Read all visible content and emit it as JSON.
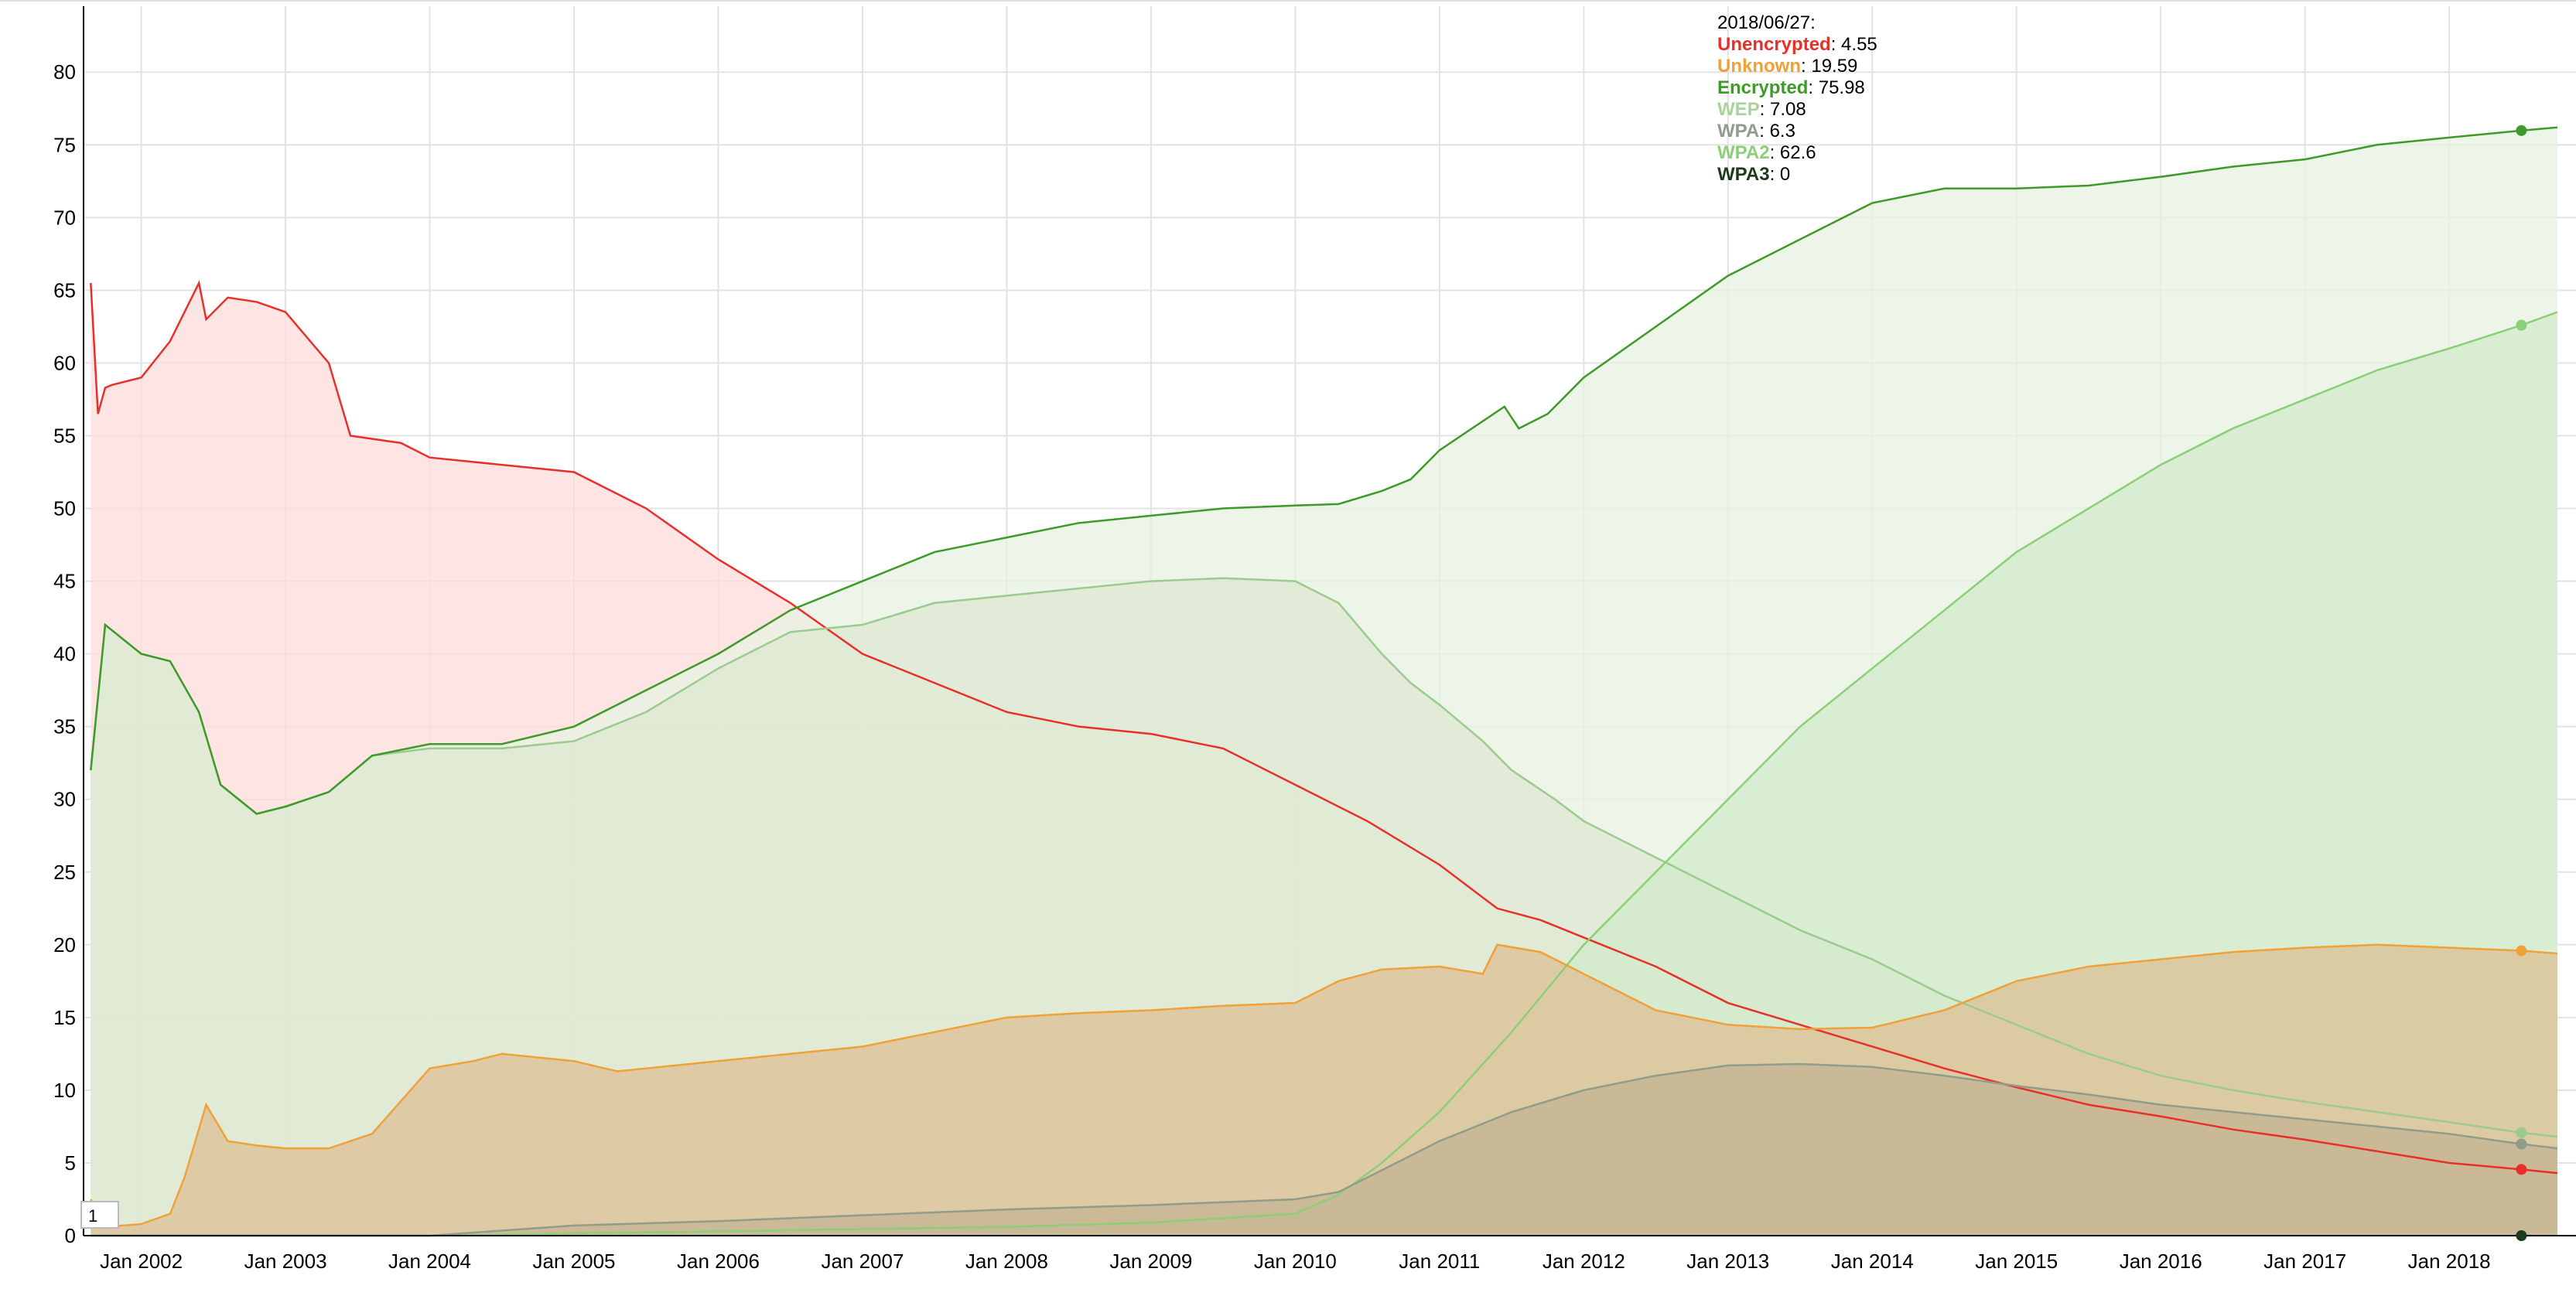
{
  "chart_data": {
    "type": "area",
    "x_ticks": [
      "Jan 2002",
      "Jan 2003",
      "Jan 2004",
      "Jan 2005",
      "Jan 2006",
      "Jan 2007",
      "Jan 2008",
      "Jan 2009",
      "Jan 2010",
      "Jan 2011",
      "Jan 2012",
      "Jan 2013",
      "Jan 2014",
      "Jan 2015",
      "Jan 2016",
      "Jan 2017",
      "Jan 2018"
    ],
    "y_ticks": [
      0,
      5,
      10,
      15,
      20,
      25,
      30,
      35,
      40,
      45,
      50,
      55,
      60,
      65,
      70,
      75,
      80
    ],
    "xlim": [
      2001.6,
      2018.75
    ],
    "ylim": [
      0,
      84
    ],
    "grid": true,
    "legend": {
      "position": "top-center",
      "date_label": "2018/06/27:",
      "entries": [
        {
          "name": "Unencrypted",
          "value": "4.55"
        },
        {
          "name": "Unknown",
          "value": "19.59"
        },
        {
          "name": "Encrypted",
          "value": "75.98"
        },
        {
          "name": "WEP",
          "value": "7.08"
        },
        {
          "name": "WPA",
          "value": "6.3"
        },
        {
          "name": "WPA2",
          "value": "62.6"
        },
        {
          "name": "WPA3",
          "value": "0"
        }
      ]
    },
    "range_selector_value": "1",
    "series": [
      {
        "name": "Unencrypted",
        "color": "#e8302a",
        "fill": "#fddcda",
        "x": [
          2001.65,
          2001.7,
          2001.75,
          2001.8,
          2002.0,
          2002.2,
          2002.4,
          2002.45,
          2002.6,
          2002.8,
          2003.0,
          2003.3,
          2003.45,
          2003.8,
          2004.0,
          2004.5,
          2005.0,
          2005.5,
          2006.0,
          2006.5,
          2007.0,
          2007.5,
          2008.0,
          2008.5,
          2009.0,
          2009.5,
          2010.0,
          2010.5,
          2011.0,
          2011.4,
          2011.7,
          2012.0,
          2012.5,
          2013.0,
          2013.5,
          2014.0,
          2014.5,
          2015.0,
          2015.5,
          2016.0,
          2016.5,
          2017.0,
          2017.5,
          2018.0,
          2018.5,
          2018.75
        ],
        "y": [
          65.5,
          56.5,
          58.3,
          58.5,
          59,
          61.5,
          65.5,
          63,
          64.5,
          64.2,
          63.5,
          60,
          55,
          54.5,
          53.5,
          53,
          52.5,
          50,
          46.5,
          43.5,
          40,
          38,
          36,
          35,
          34.5,
          33.5,
          31,
          28.5,
          25.5,
          22.5,
          21.7,
          20.5,
          18.5,
          16,
          14.5,
          13,
          11.5,
          10.2,
          9,
          8.2,
          7.3,
          6.6,
          5.8,
          5,
          4.55,
          4.3
        ]
      },
      {
        "name": "WEP",
        "color": "#9acb8f",
        "fill": "#c2c9a5",
        "x": [
          2001.65,
          2001.75,
          2002.0,
          2002.2,
          2002.4,
          2002.55,
          2002.8,
          2003.0,
          2003.3,
          2003.6,
          2004.0,
          2004.5,
          2005.0,
          2005.5,
          2006.0,
          2006.5,
          2007.0,
          2007.5,
          2008.0,
          2008.5,
          2009.0,
          2009.5,
          2010.0,
          2010.3,
          2010.6,
          2010.8,
          2011.0,
          2011.3,
          2011.5,
          2011.8,
          2012.0,
          2012.5,
          2013.0,
          2013.5,
          2014.0,
          2014.5,
          2015.0,
          2015.5,
          2016.0,
          2016.5,
          2017.0,
          2017.5,
          2018.0,
          2018.5,
          2018.75
        ],
        "y": [
          32,
          42,
          40,
          39.5,
          36,
          31,
          29,
          29.5,
          30.5,
          33,
          33.5,
          33.5,
          34,
          36,
          39,
          41.5,
          42,
          43.5,
          44,
          44.5,
          45,
          45.2,
          45,
          43.5,
          40,
          38,
          36.5,
          34,
          32,
          30,
          28.5,
          26,
          23.5,
          21,
          19,
          16.5,
          14.5,
          12.5,
          11,
          10,
          9.2,
          8.5,
          7.8,
          7.08,
          6.8
        ]
      },
      {
        "name": "Encrypted",
        "color": "#3e9a29",
        "fill": "#e5f1e0",
        "x": [
          2001.65,
          2001.75,
          2002.0,
          2002.2,
          2002.4,
          2002.55,
          2002.8,
          2003.0,
          2003.3,
          2003.6,
          2004.0,
          2004.5,
          2005.0,
          2005.5,
          2006.0,
          2006.5,
          2007.0,
          2007.5,
          2008.0,
          2008.5,
          2009.0,
          2009.5,
          2010.0,
          2010.3,
          2010.6,
          2010.8,
          2011.0,
          2011.3,
          2011.45,
          2011.55,
          2011.75,
          2012.0,
          2012.5,
          2013.0,
          2013.5,
          2014.0,
          2014.5,
          2015.0,
          2015.5,
          2016.0,
          2016.5,
          2017.0,
          2017.5,
          2018.0,
          2018.5,
          2018.75
        ],
        "y": [
          32,
          42,
          40,
          39.5,
          36,
          31,
          29,
          29.5,
          30.5,
          33,
          33.8,
          33.8,
          35,
          37.5,
          40,
          43,
          45,
          47,
          48,
          49,
          49.5,
          50,
          50.2,
          50.3,
          51.2,
          52,
          54,
          56,
          57,
          55.5,
          56.5,
          59,
          62.5,
          66,
          68.5,
          71,
          72,
          72,
          72.2,
          72.8,
          73.5,
          74,
          75,
          75.5,
          75.98,
          76.2
        ]
      },
      {
        "name": "WPA2",
        "color": "#8ccf78",
        "fill": "#d2eac9",
        "x": [
          2001.65,
          2004.0,
          2006.0,
          2008.0,
          2009.0,
          2010.0,
          2010.3,
          2010.6,
          2011.0,
          2011.5,
          2012.0,
          2012.5,
          2013.0,
          2013.5,
          2014.0,
          2014.5,
          2015.0,
          2015.5,
          2016.0,
          2016.5,
          2017.0,
          2017.5,
          2018.0,
          2018.5,
          2018.75
        ],
        "y": [
          0,
          0,
          0.3,
          0.6,
          0.9,
          1.5,
          2.8,
          5,
          8.5,
          14,
          20,
          25,
          30,
          35,
          39,
          43,
          47,
          50,
          53,
          55.5,
          57.5,
          59.5,
          61,
          62.6,
          63.5
        ]
      },
      {
        "name": "Unknown",
        "color": "#f0a138",
        "fill": "#dcbf93",
        "x": [
          2001.65,
          2001.75,
          2002.0,
          2002.2,
          2002.3,
          2002.45,
          2002.6,
          2002.8,
          2003.0,
          2003.3,
          2003.6,
          2004.0,
          2004.3,
          2004.5,
          2005.0,
          2005.3,
          2005.5,
          2006.0,
          2006.5,
          2007.0,
          2007.5,
          2008.0,
          2008.5,
          2009.0,
          2009.5,
          2010.0,
          2010.3,
          2010.6,
          2011.0,
          2011.3,
          2011.4,
          2011.7,
          2012.0,
          2012.5,
          2013.0,
          2013.5,
          2014.0,
          2014.5,
          2015.0,
          2015.5,
          2016.0,
          2016.5,
          2017.0,
          2017.5,
          2018.0,
          2018.5,
          2018.75
        ],
        "y": [
          2.5,
          0.6,
          0.8,
          1.5,
          4,
          9,
          6.5,
          6.2,
          6,
          6,
          7,
          11.5,
          12,
          12.5,
          12,
          11.3,
          11.5,
          12,
          12.5,
          13,
          14,
          15,
          15.3,
          15.5,
          15.8,
          16,
          17.5,
          18.3,
          18.5,
          18,
          20,
          19.5,
          18,
          15.5,
          14.5,
          14.2,
          14.3,
          15.5,
          17.5,
          18.5,
          19,
          19.5,
          19.8,
          20,
          19.8,
          19.59,
          19.4
        ]
      },
      {
        "name": "WPA",
        "color": "#8f9d8a",
        "fill": "#c4b393",
        "x": [
          2001.65,
          2004.0,
          2005.0,
          2006.0,
          2007.0,
          2008.0,
          2009.0,
          2010.0,
          2010.3,
          2010.6,
          2011.0,
          2011.5,
          2012.0,
          2012.5,
          2013.0,
          2013.5,
          2014.0,
          2014.5,
          2015.0,
          2015.5,
          2016.0,
          2016.5,
          2017.0,
          2017.5,
          2018.0,
          2018.5,
          2018.75
        ],
        "y": [
          0,
          0,
          0.7,
          1,
          1.4,
          1.8,
          2.1,
          2.5,
          3,
          4.5,
          6.5,
          8.5,
          10,
          11,
          11.7,
          11.8,
          11.6,
          11,
          10.3,
          9.7,
          9,
          8.5,
          8,
          7.5,
          7,
          6.3,
          6
        ]
      },
      {
        "name": "WPA3",
        "color": "#1d3b1d",
        "fill": "none",
        "x": [
          2018.5
        ],
        "y": [
          0
        ]
      }
    ],
    "markers": [
      {
        "series": "Encrypted",
        "x": 2018.5,
        "y": 75.98
      },
      {
        "series": "WPA2",
        "x": 2018.5,
        "y": 62.6
      },
      {
        "series": "Unknown",
        "x": 2018.5,
        "y": 19.59
      },
      {
        "series": "WEP",
        "x": 2018.5,
        "y": 7.08
      },
      {
        "series": "WPA",
        "x": 2018.5,
        "y": 6.3
      },
      {
        "series": "Unencrypted",
        "x": 2018.5,
        "y": 4.55
      },
      {
        "series": "WPA3",
        "x": 2018.5,
        "y": 0
      }
    ]
  }
}
